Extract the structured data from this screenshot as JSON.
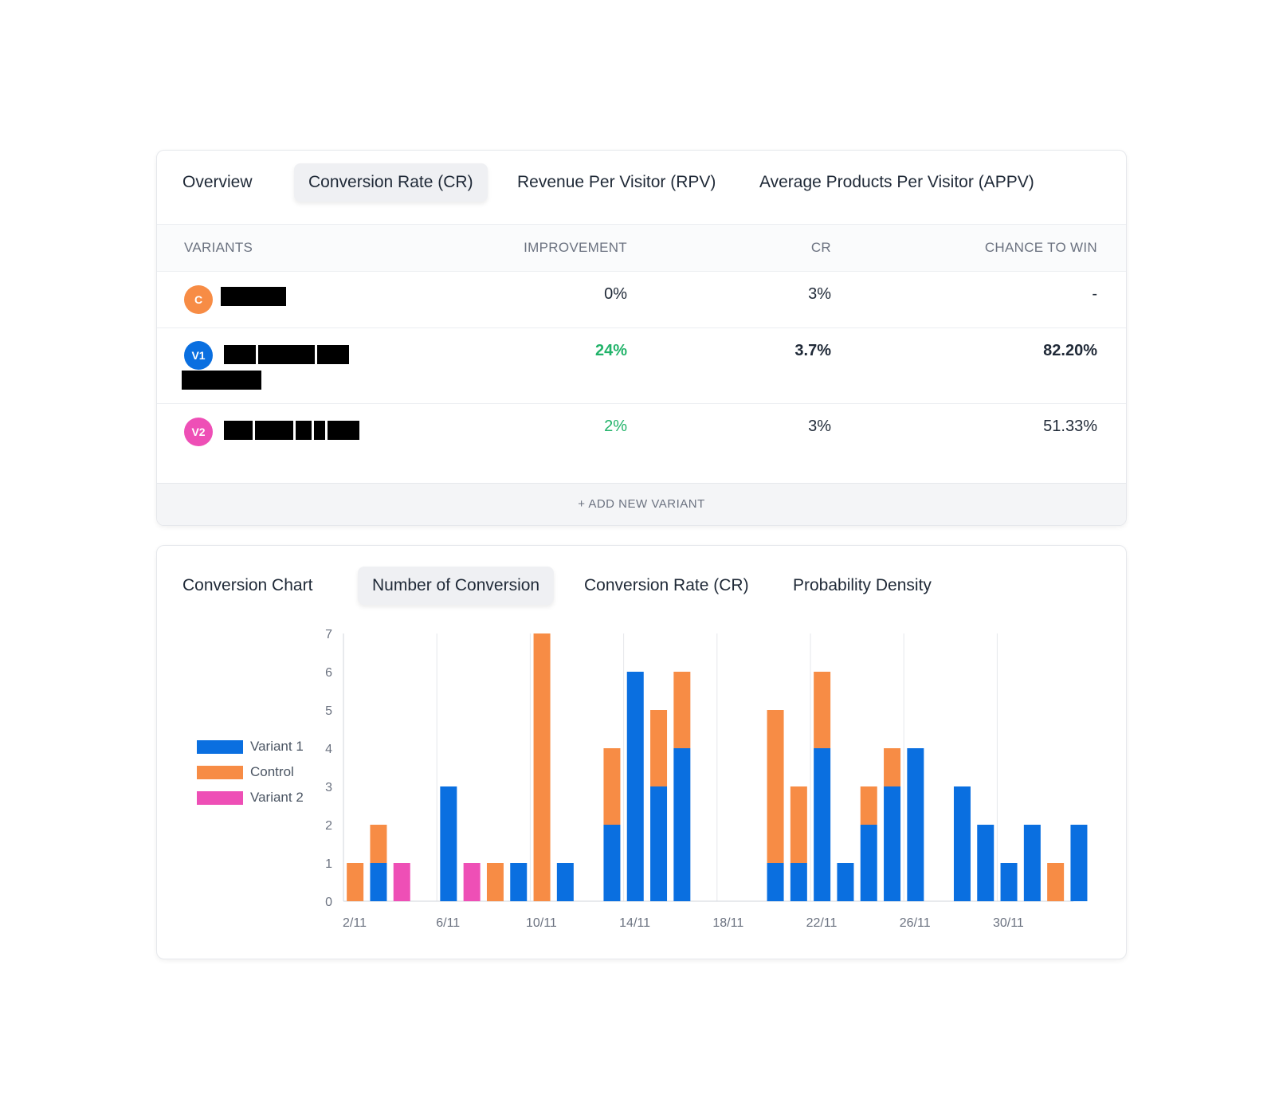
{
  "colors": {
    "control": "#f78c45",
    "variant1": "#0a6fe0",
    "variant2": "#ee4fb6",
    "positive": "#22b36a"
  },
  "top_tabs": [
    {
      "label": "Overview",
      "active": false
    },
    {
      "label": "Conversion Rate (CR)",
      "active": true
    },
    {
      "label": "Revenue Per Visitor (RPV)",
      "active": false
    },
    {
      "label": "Average Products Per Visitor (APPV)",
      "active": false
    }
  ],
  "table": {
    "headers": {
      "variants": "VARIANTS",
      "improvement": "IMPROVEMENT",
      "cr": "CR",
      "chance": "CHANCE TO WIN"
    },
    "rows": [
      {
        "badge": "C",
        "improvement": "0%",
        "cr": "3%",
        "chance": "-"
      },
      {
        "badge": "V1",
        "improvement": "24%",
        "cr": "3.7%",
        "chance": "82.20%"
      },
      {
        "badge": "V2",
        "improvement": "2%",
        "cr": "3%",
        "chance": "51.33%"
      }
    ],
    "add_variant": "+ ADD NEW VARIANT"
  },
  "chart_tabs": [
    {
      "label": "Conversion Chart",
      "active": false
    },
    {
      "label": "Number of Conversion",
      "active": true
    },
    {
      "label": "Conversion Rate (CR)",
      "active": false
    },
    {
      "label": "Probability Density",
      "active": false
    }
  ],
  "legend": [
    {
      "label": "Variant 1",
      "color": "#0a6fe0"
    },
    {
      "label": "Control",
      "color": "#f78c45"
    },
    {
      "label": "Variant 2",
      "color": "#ee4fb6"
    }
  ],
  "chart_data": {
    "type": "bar",
    "stacked": true,
    "title": "Number of Conversion",
    "ylim": [
      0,
      7
    ],
    "yticks": [
      0,
      1,
      2,
      3,
      4,
      5,
      6,
      7
    ],
    "xtick_labels": [
      "2/11",
      "6/11",
      "10/11",
      "14/11",
      "18/11",
      "22/11",
      "26/11",
      "30/11"
    ],
    "series_names": [
      "Variant 1",
      "Control",
      "Variant 2"
    ],
    "bars": [
      {
        "day": 1,
        "variant1": 0,
        "control": 1,
        "variant2": 0
      },
      {
        "day": 2,
        "variant1": 1,
        "control": 1,
        "variant2": 0
      },
      {
        "day": 3,
        "variant1": 0,
        "control": 0,
        "variant2": 1
      },
      {
        "day": 5,
        "variant1": 3,
        "control": 0,
        "variant2": 0
      },
      {
        "day": 6,
        "variant1": 0,
        "control": 0,
        "variant2": 1
      },
      {
        "day": 7,
        "variant1": 0,
        "control": 1,
        "variant2": 0
      },
      {
        "day": 8,
        "variant1": 1,
        "control": 0,
        "variant2": 0
      },
      {
        "day": 9,
        "variant1": 0,
        "control": 7,
        "variant2": 0
      },
      {
        "day": 10,
        "variant1": 1,
        "control": 0,
        "variant2": 0
      },
      {
        "day": 12,
        "variant1": 2,
        "control": 2,
        "variant2": 0
      },
      {
        "day": 13,
        "variant1": 6,
        "control": 0,
        "variant2": 0
      },
      {
        "day": 14,
        "variant1": 3,
        "control": 2,
        "variant2": 0
      },
      {
        "day": 15,
        "variant1": 4,
        "control": 2,
        "variant2": 0
      },
      {
        "day": 19,
        "variant1": 1,
        "control": 4,
        "variant2": 0
      },
      {
        "day": 20,
        "variant1": 1,
        "control": 2,
        "variant2": 0
      },
      {
        "day": 21,
        "variant1": 4,
        "control": 2,
        "variant2": 0
      },
      {
        "day": 22,
        "variant1": 1,
        "control": 0,
        "variant2": 0
      },
      {
        "day": 23,
        "variant1": 2,
        "control": 1,
        "variant2": 0
      },
      {
        "day": 24,
        "variant1": 3,
        "control": 1,
        "variant2": 0
      },
      {
        "day": 25,
        "variant1": 4,
        "control": 0,
        "variant2": 0
      },
      {
        "day": 27,
        "variant1": 3,
        "control": 0,
        "variant2": 0
      },
      {
        "day": 28,
        "variant1": 2,
        "control": 0,
        "variant2": 0
      },
      {
        "day": 29,
        "variant1": 1,
        "control": 0,
        "variant2": 0
      },
      {
        "day": 30,
        "variant1": 2,
        "control": 0,
        "variant2": 0
      },
      {
        "day": 31,
        "variant1": 0,
        "control": 1,
        "variant2": 0
      },
      {
        "day": 32,
        "variant1": 2,
        "control": 0,
        "variant2": 0
      }
    ]
  }
}
